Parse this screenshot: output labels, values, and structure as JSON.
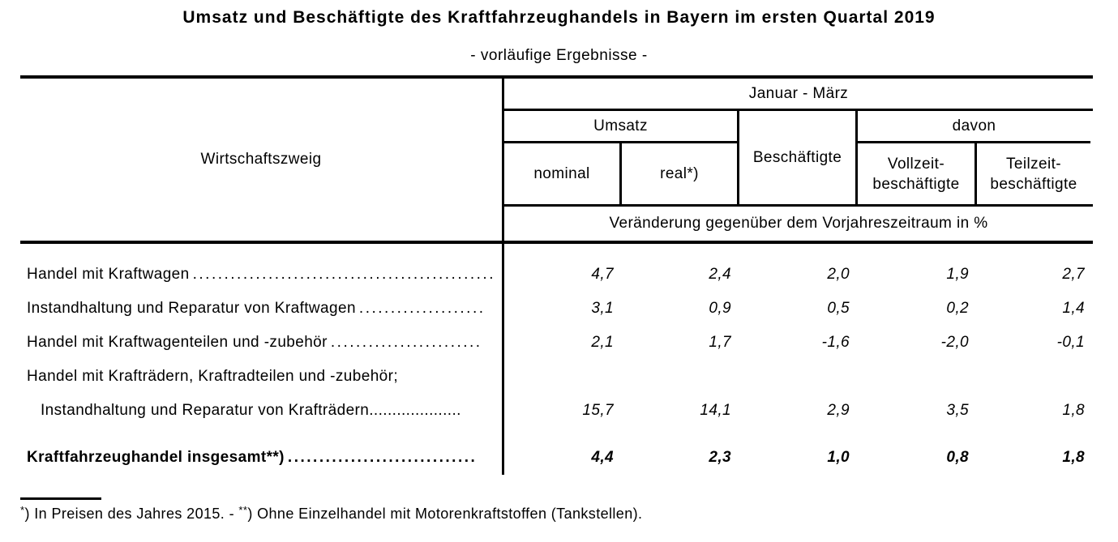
{
  "colors": {
    "text": "#000000",
    "background": "#ffffff"
  },
  "title": "Umsatz und Beschäftigte des Kraftfahrzeughandels in Bayern im ersten Quartal 2019",
  "subtitle": "- vorläufige Ergebnisse -",
  "table": {
    "row_header": "Wirtschaftszweig",
    "period_header": "Januar - März",
    "groups": {
      "umsatz": "Umsatz",
      "beschaeftigte": "Beschäftigte",
      "davon": "davon"
    },
    "columns": {
      "nominal": "nominal",
      "real": "real*)",
      "vollzeit": "Vollzeit-\nbeschäftigte",
      "teilzeit": "Teilzeit-\nbeschäftigte"
    },
    "unit_row": "Veränderung gegenüber dem Vorjahreszeitraum in %",
    "rows": [
      {
        "label": "Handel mit Kraftwagen",
        "leader": "................................................",
        "values": [
          "4,7",
          "2,4",
          "2,0",
          "1,9",
          "2,7"
        ]
      },
      {
        "label": "Instandhaltung und Reparatur von Kraftwagen",
        "leader": "....................",
        "values": [
          "3,1",
          "0,9",
          "0,5",
          "0,2",
          "1,4"
        ]
      },
      {
        "label": "Handel mit Kraftwagenteilen und -zubehör",
        "leader": "........................",
        "values": [
          "2,1",
          "1,7",
          "-1,6",
          "-2,0",
          "-0,1"
        ]
      },
      {
        "label_line1": "Handel mit Krafträdern, Kraftradteilen und -zubehör;",
        "label_line2": "Instandhaltung und Reparatur von Krafträdern",
        "leader": "....................",
        "values": [
          "15,7",
          "14,1",
          "2,9",
          "3,5",
          "1,8"
        ]
      },
      {
        "label": "Kraftfahrzeughandel insgesamt**)",
        "leader": "..............................",
        "values": [
          "4,4",
          "2,3",
          "1,0",
          "0,8",
          "1,8"
        ]
      }
    ]
  },
  "footnote": {
    "marker1": "*",
    "part1": ") In Preisen des Jahres 2015. - ",
    "marker2": "**",
    "part2": ") Ohne Einzelhandel mit Motorenkraftstoffen (Tankstellen)."
  }
}
